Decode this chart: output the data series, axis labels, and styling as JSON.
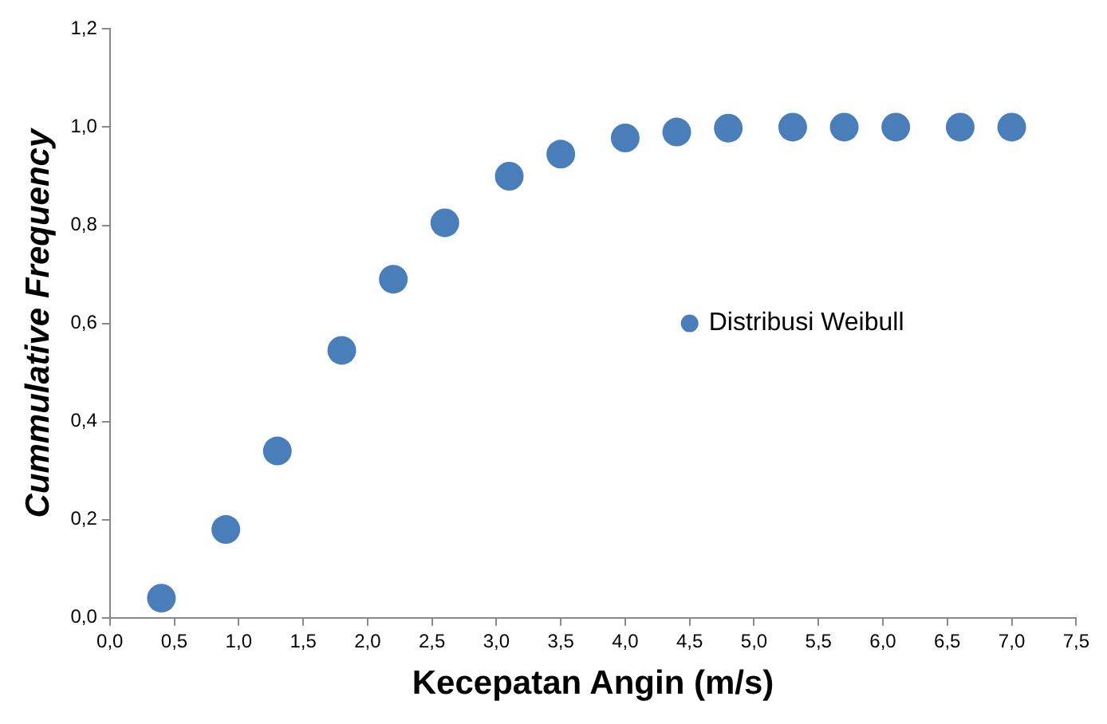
{
  "chart_data": {
    "type": "scatter",
    "xlabel": "Kecepatan Angin (m/s)",
    "ylabel": "Cummulative Frequency",
    "series": [
      {
        "name": "Distribusi Weibull",
        "color": "#4a7ebb",
        "x": [
          0.4,
          0.9,
          1.3,
          1.8,
          2.2,
          2.6,
          3.1,
          3.5,
          4.0,
          4.4,
          4.8,
          5.3,
          5.7,
          6.1,
          6.6,
          7.0
        ],
        "values": [
          0.04,
          0.18,
          0.34,
          0.545,
          0.69,
          0.805,
          0.9,
          0.945,
          0.978,
          0.99,
          0.998,
          1.0,
          1.0,
          1.0,
          1.0,
          1.0
        ]
      }
    ],
    "xlim": [
      0,
      7.5
    ],
    "xticks": [
      {
        "value": 0,
        "label": "0,0"
      },
      {
        "value": 0.5,
        "label": "0,5"
      },
      {
        "value": 1,
        "label": "1,0"
      },
      {
        "value": 1.5,
        "label": "1,5"
      },
      {
        "value": 2,
        "label": "2,0"
      },
      {
        "value": 2.5,
        "label": "2,5"
      },
      {
        "value": 3,
        "label": "3,0"
      },
      {
        "value": 3.5,
        "label": "3,5"
      },
      {
        "value": 4,
        "label": "4,0"
      },
      {
        "value": 4.5,
        "label": "4,5"
      },
      {
        "value": 5,
        "label": "5,0"
      },
      {
        "value": 5.5,
        "label": "5,5"
      },
      {
        "value": 6,
        "label": "6,0"
      },
      {
        "value": 6.5,
        "label": "6,5"
      },
      {
        "value": 7,
        "label": "7,0"
      },
      {
        "value": 7.5,
        "label": "7,5"
      }
    ],
    "ylim": [
      0,
      1.2
    ],
    "yticks": [
      {
        "value": 0,
        "label": "0,0"
      },
      {
        "value": 0.2,
        "label": "0,2"
      },
      {
        "value": 0.4,
        "label": "0,4"
      },
      {
        "value": 0.6,
        "label": "0,6"
      },
      {
        "value": 0.8,
        "label": "0,8"
      },
      {
        "value": 1,
        "label": "1,0"
      },
      {
        "value": 1.2,
        "label": "1,2"
      }
    ],
    "marker": "circle",
    "legend": "right",
    "grid": false
  }
}
